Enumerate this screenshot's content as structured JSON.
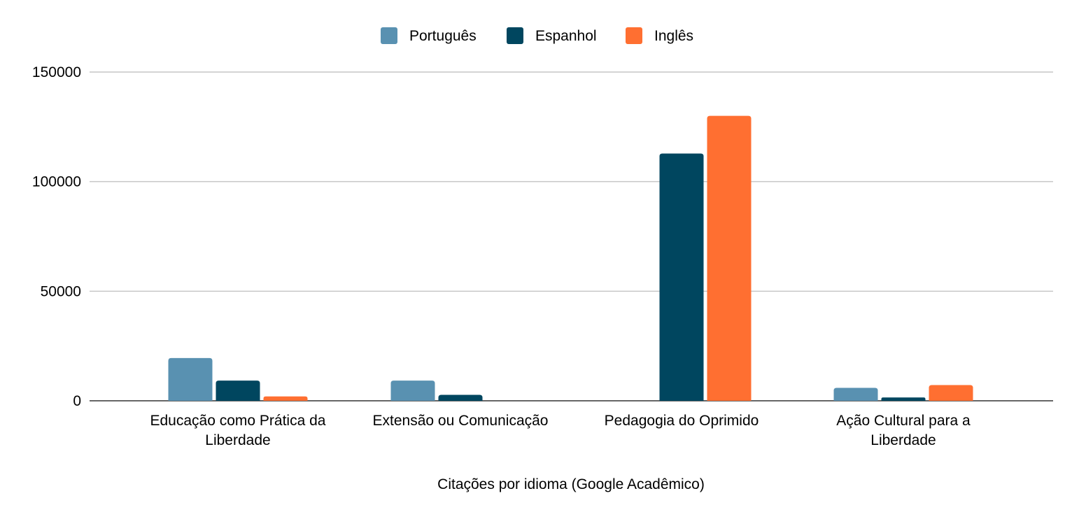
{
  "chart_data": {
    "type": "bar",
    "title": "",
    "xlabel": "Citações por idioma (Google Acadêmico)",
    "ylabel": "",
    "ylim": [
      0,
      150000
    ],
    "yticks": [
      "0",
      "50000",
      "100000",
      "150000"
    ],
    "grid": true,
    "legend_position": "top-center",
    "categories": [
      [
        "Educação como Prática da",
        "Liberdade"
      ],
      [
        "Extensão ou Comunicação"
      ],
      [
        "Pedagogia do Oprimido"
      ],
      [
        "Ação Cultural para a",
        "Liberdade"
      ]
    ],
    "series": [
      {
        "name": "Português",
        "color": "#5991b1",
        "values": [
          19500,
          9200,
          0,
          5900
        ]
      },
      {
        "name": "Espanhol",
        "color": "#00465f",
        "values": [
          9200,
          2700,
          112800,
          1500
        ]
      },
      {
        "name": "Inglês",
        "color": "#ff6f31",
        "values": [
          2000,
          0,
          130000,
          7200
        ]
      }
    ]
  }
}
